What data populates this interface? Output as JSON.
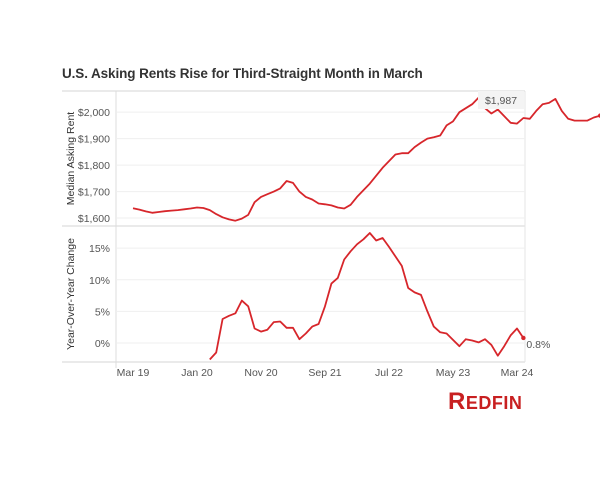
{
  "title": "U.S. Asking Rents Rise for Third-Straight Month in March",
  "brand": {
    "name": "Redfin",
    "logo_first": "R",
    "logo_rest": "EDFIN",
    "color": "#c82021"
  },
  "line_color": "#d7262b",
  "chart_data": [
    {
      "type": "line",
      "panel": "top",
      "ylabel": "Median Asking Rent",
      "ylim": [
        1570,
        2080
      ],
      "yticks": [
        1600,
        1700,
        1800,
        1900,
        2000
      ],
      "ytick_labels": [
        "$1,600",
        "$1,700",
        "$1,800",
        "$1,900",
        "$2,000"
      ],
      "grid": true,
      "end_label": "$1,987",
      "x_start": "Mar 2019",
      "x_step": "month",
      "values": [
        1637,
        1632,
        1625,
        1620,
        1623,
        1626,
        1628,
        1630,
        1633,
        1636,
        1640,
        1638,
        1630,
        1615,
        1603,
        1595,
        1590,
        1598,
        1612,
        1660,
        1680,
        1690,
        1700,
        1712,
        1740,
        1733,
        1700,
        1680,
        1670,
        1655,
        1652,
        1648,
        1640,
        1636,
        1650,
        1680,
        1705,
        1730,
        1760,
        1790,
        1815,
        1840,
        1845,
        1845,
        1868,
        1885,
        1900,
        1905,
        1912,
        1950,
        1965,
        2000,
        2015,
        2030,
        2055,
        2015,
        1995,
        2010,
        1985,
        1960,
        1957,
        1978,
        1975,
        2005,
        2030,
        2035,
        2050,
        2005,
        1975,
        1968,
        1968,
        1968,
        1980,
        1987
      ]
    },
    {
      "type": "line",
      "panel": "bottom",
      "ylabel": "Year-Over-Year Change",
      "ylim": [
        -3,
        18.5
      ],
      "yticks": [
        0,
        5,
        10,
        15
      ],
      "ytick_labels": [
        "0%",
        "5%",
        "10%",
        "15%"
      ],
      "grid": true,
      "end_label": "0.8%",
      "x_start": "Mar 2020",
      "x_step": "month",
      "values": [
        -2.6,
        -1.5,
        3.8,
        4.3,
        4.7,
        6.7,
        5.8,
        2.3,
        1.8,
        2.1,
        3.3,
        3.4,
        2.4,
        2.4,
        0.6,
        1.5,
        2.6,
        3.0,
        5.8,
        9.4,
        10.3,
        13.2,
        14.5,
        15.6,
        16.4,
        17.4,
        16.2,
        16.6,
        15.2,
        13.7,
        12.2,
        8.7,
        8.0,
        7.6,
        5.0,
        2.6,
        1.7,
        1.5,
        0.5,
        -0.5,
        0.6,
        0.4,
        0.1,
        0.6,
        -0.3,
        -2.0,
        -0.5,
        1.2,
        2.3,
        0.8
      ]
    }
  ],
  "x_axis": {
    "ticks": [
      "Mar 19",
      "Jan 20",
      "Nov 20",
      "Sep 21",
      "Jul 22",
      "May 23",
      "Mar 24"
    ]
  }
}
